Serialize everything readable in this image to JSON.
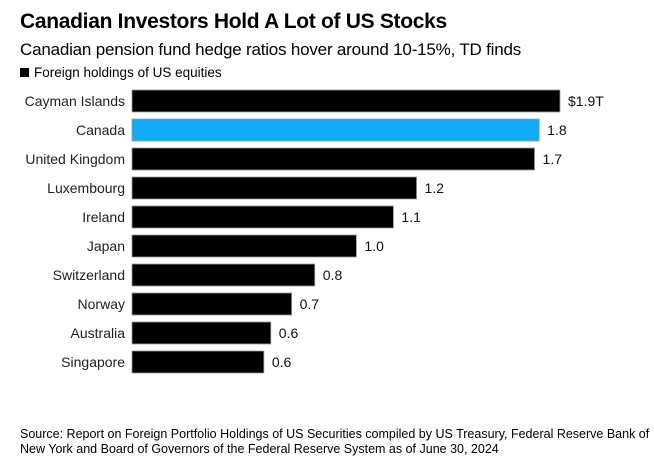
{
  "chart_data": {
    "type": "bar",
    "orientation": "horizontal",
    "title": "Canadian Investors Hold A Lot of US Stocks",
    "subtitle": "Canadian pension fund hedge ratios hover around 10-15%, TD finds",
    "legend": [
      {
        "label": "Foreign holdings of US equities",
        "color": "#000000"
      }
    ],
    "legend_position": "top-left",
    "unit": "trillion USD",
    "xlabel": "",
    "ylabel": "",
    "grid": false,
    "xlim": [
      0,
      1.85
    ],
    "categories": [
      "Cayman Islands",
      "Canada",
      "United Kingdom",
      "Luxembourg",
      "Ireland",
      "Japan",
      "Switzerland",
      "Norway",
      "Australia",
      "Singapore"
    ],
    "values": [
      1.85,
      1.76,
      1.74,
      1.23,
      1.13,
      0.97,
      0.79,
      0.69,
      0.6,
      0.57
    ],
    "data_labels": [
      "$1.9T",
      "1.8",
      "1.7",
      "1.2",
      "1.1",
      "1.0",
      "0.8",
      "0.7",
      "0.6",
      "0.6"
    ],
    "colors": [
      "#000000",
      "#12a9f5",
      "#000000",
      "#000000",
      "#000000",
      "#000000",
      "#000000",
      "#000000",
      "#000000",
      "#000000"
    ],
    "highlight": "Canada",
    "highlight_color": "#12a9f5",
    "bar_color": "#000000",
    "source": "Source: Report on Foreign Portfolio Holdings of US Securities compiled by US Treasury, Federal Reserve Bank of New York and Board of Governors of the Federal Reserve System as of June 30, 2024"
  }
}
